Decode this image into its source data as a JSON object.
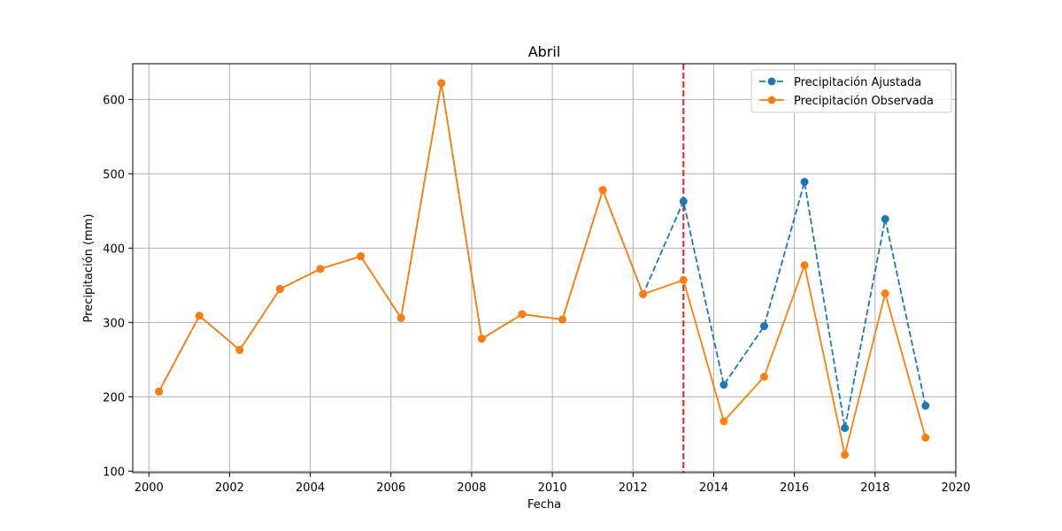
{
  "chart_data": {
    "type": "line",
    "title": "Abril",
    "xlabel": "Fecha",
    "ylabel": "Precipitación (mm)",
    "xlim": [
      1999.6,
      2020.0
    ],
    "ylim": [
      98,
      648
    ],
    "x_ticks": [
      2000,
      2002,
      2004,
      2006,
      2008,
      2010,
      2012,
      2014,
      2016,
      2018,
      2020
    ],
    "y_ticks": [
      100,
      200,
      300,
      400,
      500,
      600
    ],
    "grid": true,
    "legend_position": "upper right",
    "x": [
      2000.25,
      2001.25,
      2002.25,
      2003.25,
      2004.25,
      2005.25,
      2006.25,
      2007.25,
      2008.25,
      2009.25,
      2010.25,
      2011.25,
      2012.25,
      2013.25,
      2014.25,
      2015.25,
      2016.25,
      2017.25,
      2018.25,
      2019.25
    ],
    "series": [
      {
        "name": "Precipitación Ajustada",
        "color": "#1f77b4",
        "style": "dashed",
        "marker": "circle",
        "values": [
          207,
          309,
          263,
          345,
          372,
          389,
          306,
          622,
          278,
          311,
          304,
          478,
          338,
          463,
          216,
          295,
          489,
          158,
          439,
          188
        ]
      },
      {
        "name": "Precipitación Observada",
        "color": "#ff7f0e",
        "style": "solid",
        "marker": "circle",
        "values": [
          207,
          309,
          263,
          345,
          372,
          389,
          306,
          622,
          278,
          311,
          304,
          478,
          338,
          357,
          167,
          227,
          377,
          122,
          339,
          145
        ]
      }
    ],
    "vline": {
      "x": 2013.25,
      "color": "#d62728",
      "style": "dashed"
    }
  }
}
